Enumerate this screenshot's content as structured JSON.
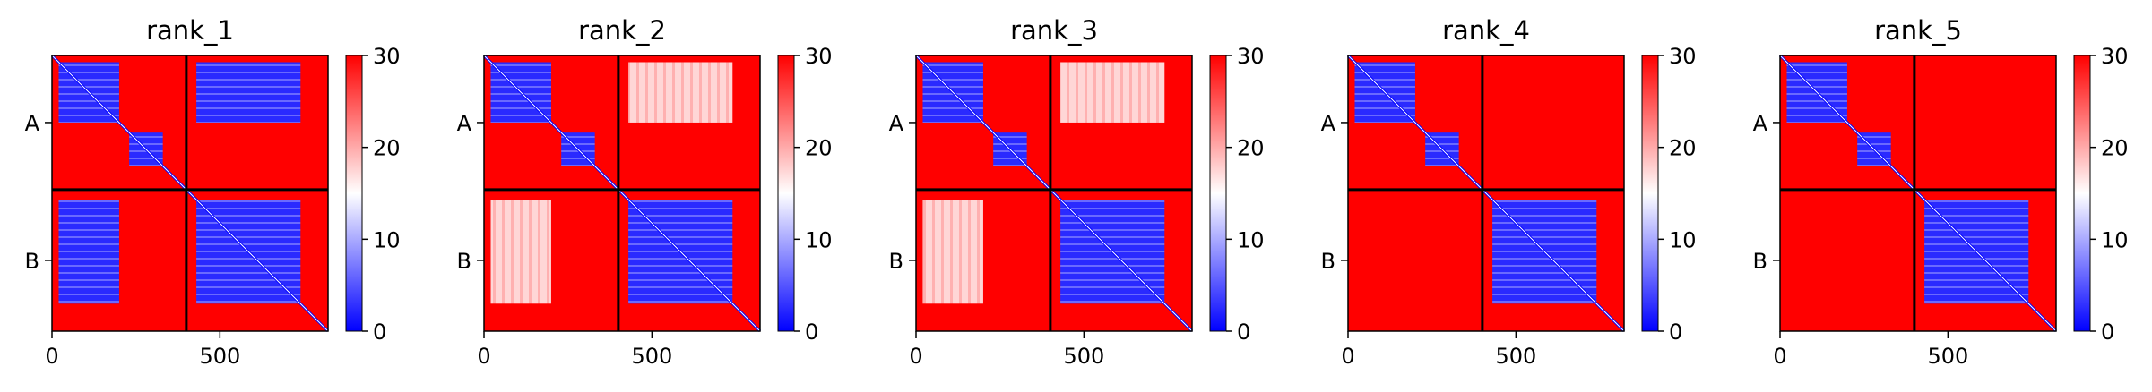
{
  "chart_data": [
    {
      "type": "heatmap",
      "title": "rank_1",
      "chains": [
        "A",
        "B"
      ],
      "x_ticks": [
        0,
        500
      ],
      "xlim": [
        0,
        822
      ],
      "chain_boundary": 400,
      "colorbar": {
        "ticks": [
          0,
          10,
          20,
          30
        ],
        "range": [
          0,
          30
        ],
        "colors": [
          "#0000ff",
          "#ffffff",
          "#ff0000"
        ]
      },
      "blue_blocks": [
        [
          20,
          200,
          20,
          200
        ],
        [
          230,
          330,
          230,
          330
        ],
        [
          430,
          740,
          430,
          740
        ],
        [
          20,
          200,
          430,
          740
        ],
        [
          430,
          740,
          20,
          200
        ]
      ],
      "light_blocks": []
    },
    {
      "type": "heatmap",
      "title": "rank_2",
      "chains": [
        "A",
        "B"
      ],
      "x_ticks": [
        0,
        500
      ],
      "xlim": [
        0,
        822
      ],
      "chain_boundary": 400,
      "colorbar": {
        "ticks": [
          0,
          10,
          20,
          30
        ],
        "range": [
          0,
          30
        ],
        "colors": [
          "#0000ff",
          "#ffffff",
          "#ff0000"
        ]
      },
      "blue_blocks": [
        [
          20,
          200,
          20,
          200
        ],
        [
          230,
          330,
          230,
          330
        ],
        [
          430,
          740,
          430,
          740
        ]
      ],
      "light_blocks": [
        [
          20,
          200,
          430,
          740
        ],
        [
          430,
          740,
          20,
          200
        ]
      ]
    },
    {
      "type": "heatmap",
      "title": "rank_3",
      "chains": [
        "A",
        "B"
      ],
      "x_ticks": [
        0,
        500
      ],
      "xlim": [
        0,
        822
      ],
      "chain_boundary": 400,
      "colorbar": {
        "ticks": [
          0,
          10,
          20,
          30
        ],
        "range": [
          0,
          30
        ],
        "colors": [
          "#0000ff",
          "#ffffff",
          "#ff0000"
        ]
      },
      "blue_blocks": [
        [
          20,
          200,
          20,
          200
        ],
        [
          230,
          330,
          230,
          330
        ],
        [
          430,
          740,
          430,
          740
        ]
      ],
      "light_blocks": [
        [
          20,
          200,
          430,
          740
        ],
        [
          430,
          740,
          20,
          200
        ]
      ]
    },
    {
      "type": "heatmap",
      "title": "rank_4",
      "chains": [
        "A",
        "B"
      ],
      "x_ticks": [
        0,
        500
      ],
      "xlim": [
        0,
        822
      ],
      "chain_boundary": 400,
      "colorbar": {
        "ticks": [
          0,
          10,
          20,
          30
        ],
        "range": [
          0,
          30
        ],
        "colors": [
          "#0000ff",
          "#ffffff",
          "#ff0000"
        ]
      },
      "blue_blocks": [
        [
          20,
          200,
          20,
          200
        ],
        [
          230,
          330,
          230,
          330
        ],
        [
          430,
          740,
          430,
          740
        ]
      ],
      "light_blocks": []
    },
    {
      "type": "heatmap",
      "title": "rank_5",
      "chains": [
        "A",
        "B"
      ],
      "x_ticks": [
        0,
        500
      ],
      "xlim": [
        0,
        822
      ],
      "chain_boundary": 400,
      "colorbar": {
        "ticks": [
          0,
          10,
          20,
          30
        ],
        "range": [
          0,
          30
        ],
        "colors": [
          "#0000ff",
          "#ffffff",
          "#ff0000"
        ]
      },
      "blue_blocks": [
        [
          20,
          200,
          20,
          200
        ],
        [
          230,
          330,
          230,
          330
        ],
        [
          430,
          740,
          430,
          740
        ]
      ],
      "light_blocks": []
    }
  ]
}
